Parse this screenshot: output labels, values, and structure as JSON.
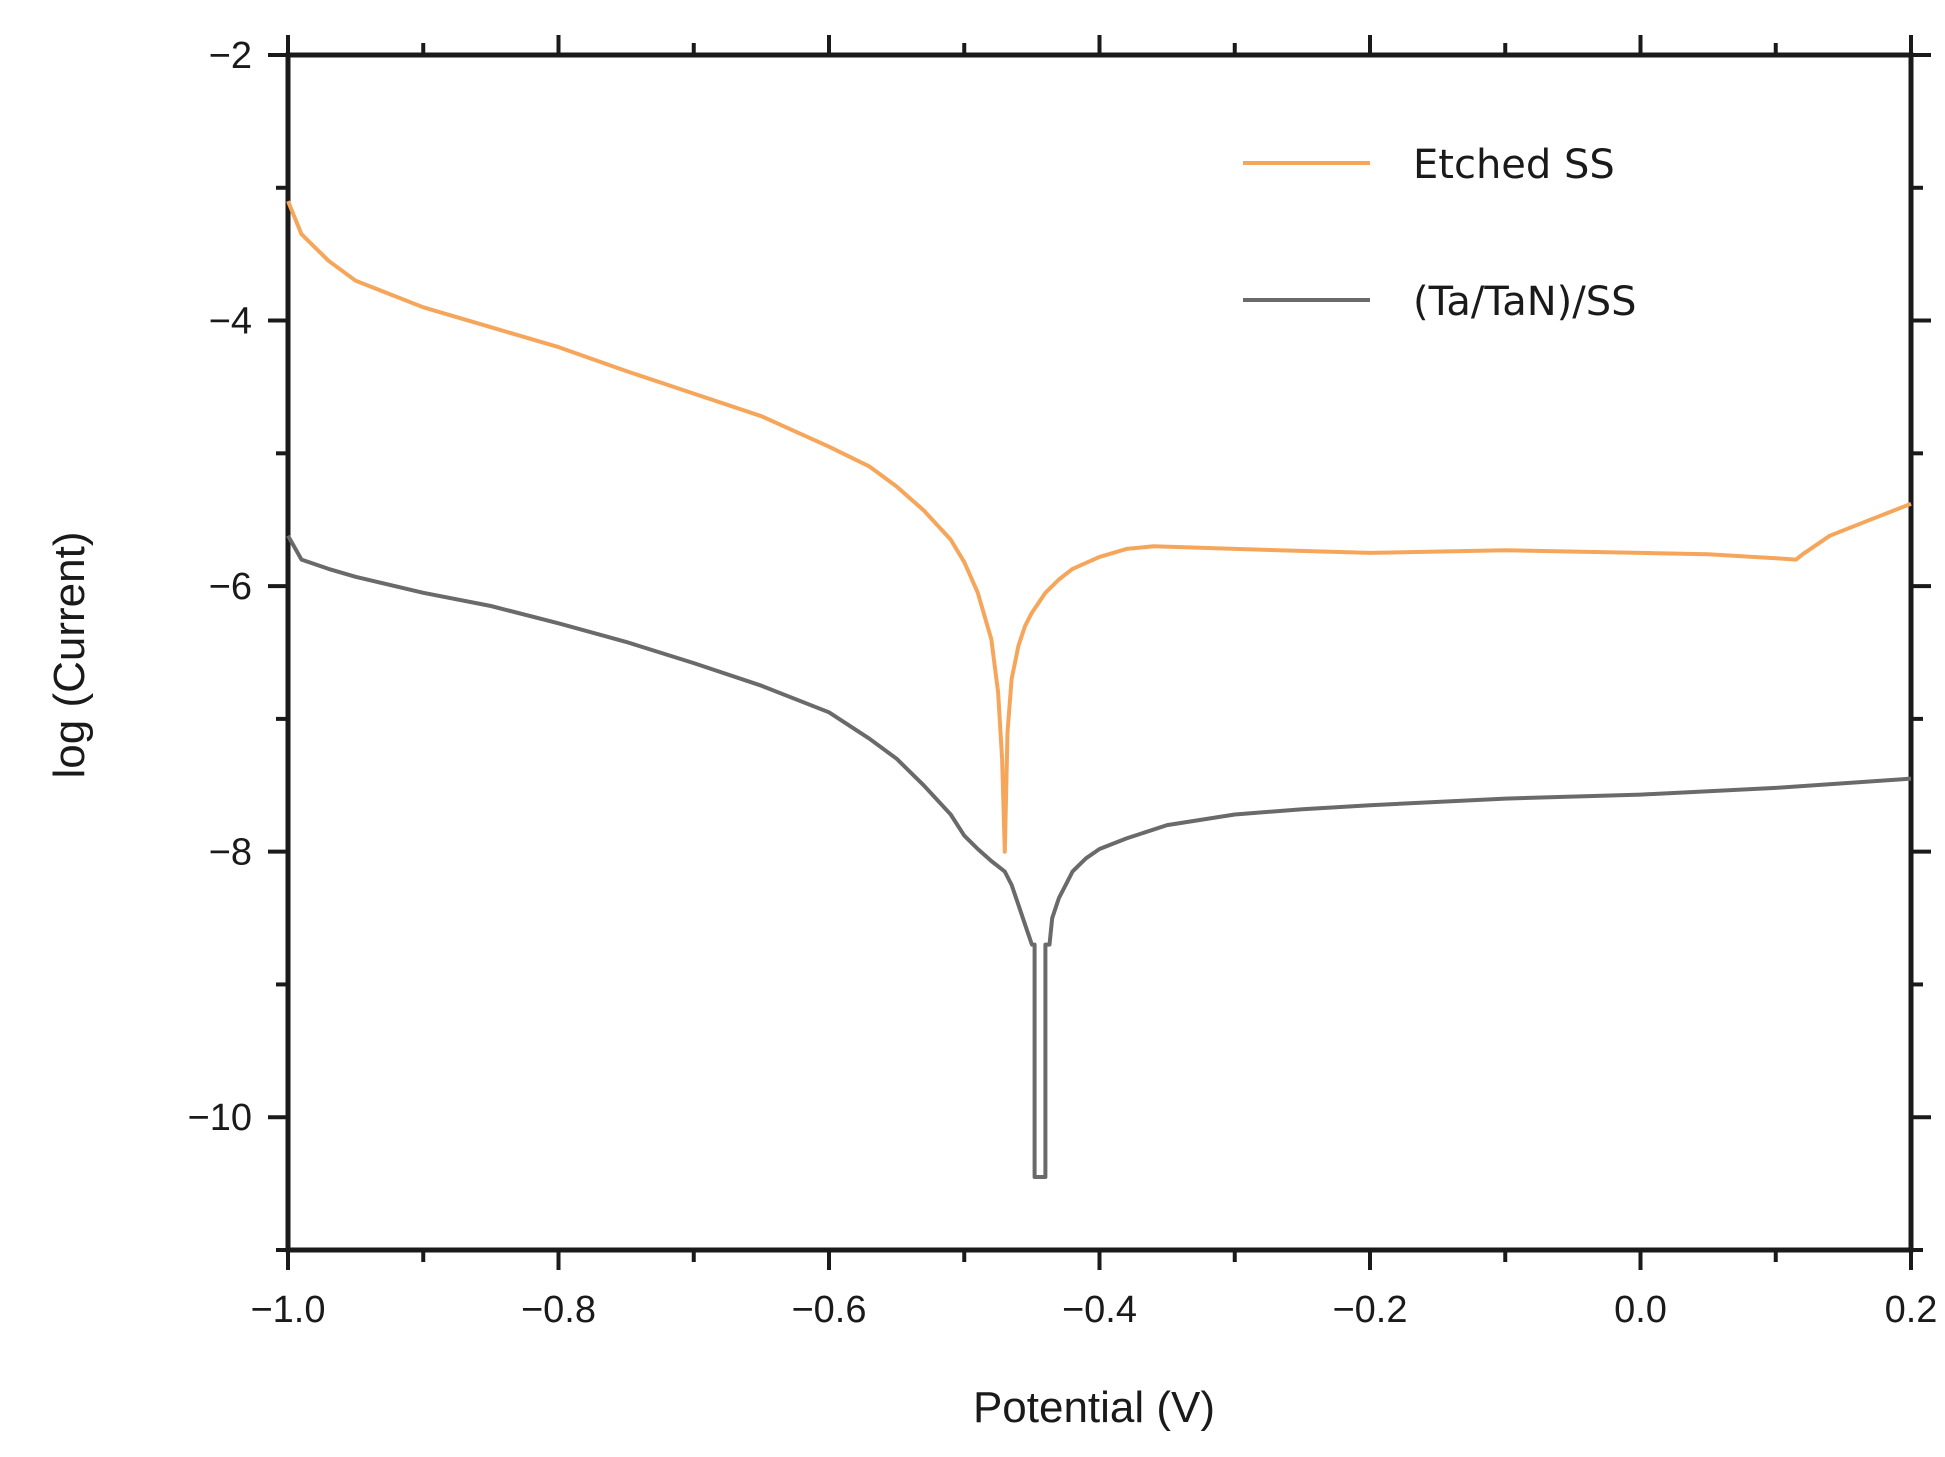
{
  "chart_data": {
    "type": "line",
    "xlabel": "Potential (V)",
    "ylabel": "log (Current)",
    "xlim": [
      -1.0,
      0.2
    ],
    "ylim": [
      -11,
      -2
    ],
    "xticks": [
      -1.0,
      -0.8,
      -0.6,
      -0.4,
      -0.2,
      0.0,
      0.2
    ],
    "xtick_labels": [
      "−1.0",
      "−0.8",
      "−0.6",
      "−0.4",
      "−0.2",
      "0.0",
      "0.2"
    ],
    "yticks": [
      -2,
      -4,
      -6,
      -8,
      -10
    ],
    "ytick_labels": [
      "−2",
      "−4",
      "−6",
      "−8",
      "−10"
    ],
    "grid": false,
    "legend_position": "top-right",
    "series": [
      {
        "name": "Etched SS",
        "color": "#f5a65b",
        "x": [
          -1.0,
          -0.99,
          -0.97,
          -0.95,
          -0.9,
          -0.85,
          -0.8,
          -0.75,
          -0.7,
          -0.65,
          -0.6,
          -0.57,
          -0.55,
          -0.53,
          -0.51,
          -0.5,
          -0.49,
          -0.48,
          -0.475,
          -0.472,
          -0.47,
          -0.468,
          -0.465,
          -0.46,
          -0.455,
          -0.45,
          -0.44,
          -0.43,
          -0.42,
          -0.4,
          -0.38,
          -0.36,
          -0.3,
          -0.2,
          -0.1,
          0.0,
          0.05,
          0.1,
          0.115,
          0.12,
          0.14,
          0.17,
          0.2
        ],
        "y": [
          -3.1,
          -3.35,
          -3.55,
          -3.7,
          -3.9,
          -4.05,
          -4.2,
          -4.38,
          -4.55,
          -4.72,
          -4.95,
          -5.1,
          -5.25,
          -5.43,
          -5.65,
          -5.82,
          -6.05,
          -6.4,
          -6.8,
          -7.3,
          -8.0,
          -7.1,
          -6.7,
          -6.45,
          -6.3,
          -6.2,
          -6.05,
          -5.95,
          -5.87,
          -5.78,
          -5.72,
          -5.7,
          -5.72,
          -5.75,
          -5.73,
          -5.75,
          -5.76,
          -5.79,
          -5.8,
          -5.76,
          -5.62,
          -5.5,
          -5.38
        ]
      },
      {
        "name": "(Ta/TaN)/SS",
        "color": "#6a6a6a",
        "x": [
          -1.0,
          -0.99,
          -0.97,
          -0.95,
          -0.9,
          -0.85,
          -0.8,
          -0.75,
          -0.7,
          -0.65,
          -0.6,
          -0.57,
          -0.55,
          -0.53,
          -0.51,
          -0.5,
          -0.49,
          -0.48,
          -0.47,
          -0.465,
          -0.46,
          -0.455,
          -0.45,
          -0.448,
          -0.448,
          -0.445,
          -0.445,
          -0.44,
          -0.44,
          -0.437,
          -0.435,
          -0.43,
          -0.425,
          -0.42,
          -0.415,
          -0.41,
          -0.4,
          -0.38,
          -0.35,
          -0.3,
          -0.25,
          -0.2,
          -0.1,
          0.0,
          0.1,
          0.2
        ],
        "y": [
          -5.62,
          -5.8,
          -5.87,
          -5.93,
          -6.05,
          -6.15,
          -6.28,
          -6.42,
          -6.58,
          -6.75,
          -6.95,
          -7.15,
          -7.3,
          -7.5,
          -7.72,
          -7.88,
          -7.98,
          -8.07,
          -8.15,
          -8.25,
          -8.4,
          -8.55,
          -8.7,
          -8.7,
          -10.45,
          -10.45,
          -10.45,
          -10.45,
          -8.7,
          -8.7,
          -8.5,
          -8.35,
          -8.25,
          -8.15,
          -8.1,
          -8.05,
          -7.98,
          -7.9,
          -7.8,
          -7.72,
          -7.68,
          -7.65,
          -7.6,
          -7.57,
          -7.52,
          -7.45
        ]
      }
    ]
  }
}
